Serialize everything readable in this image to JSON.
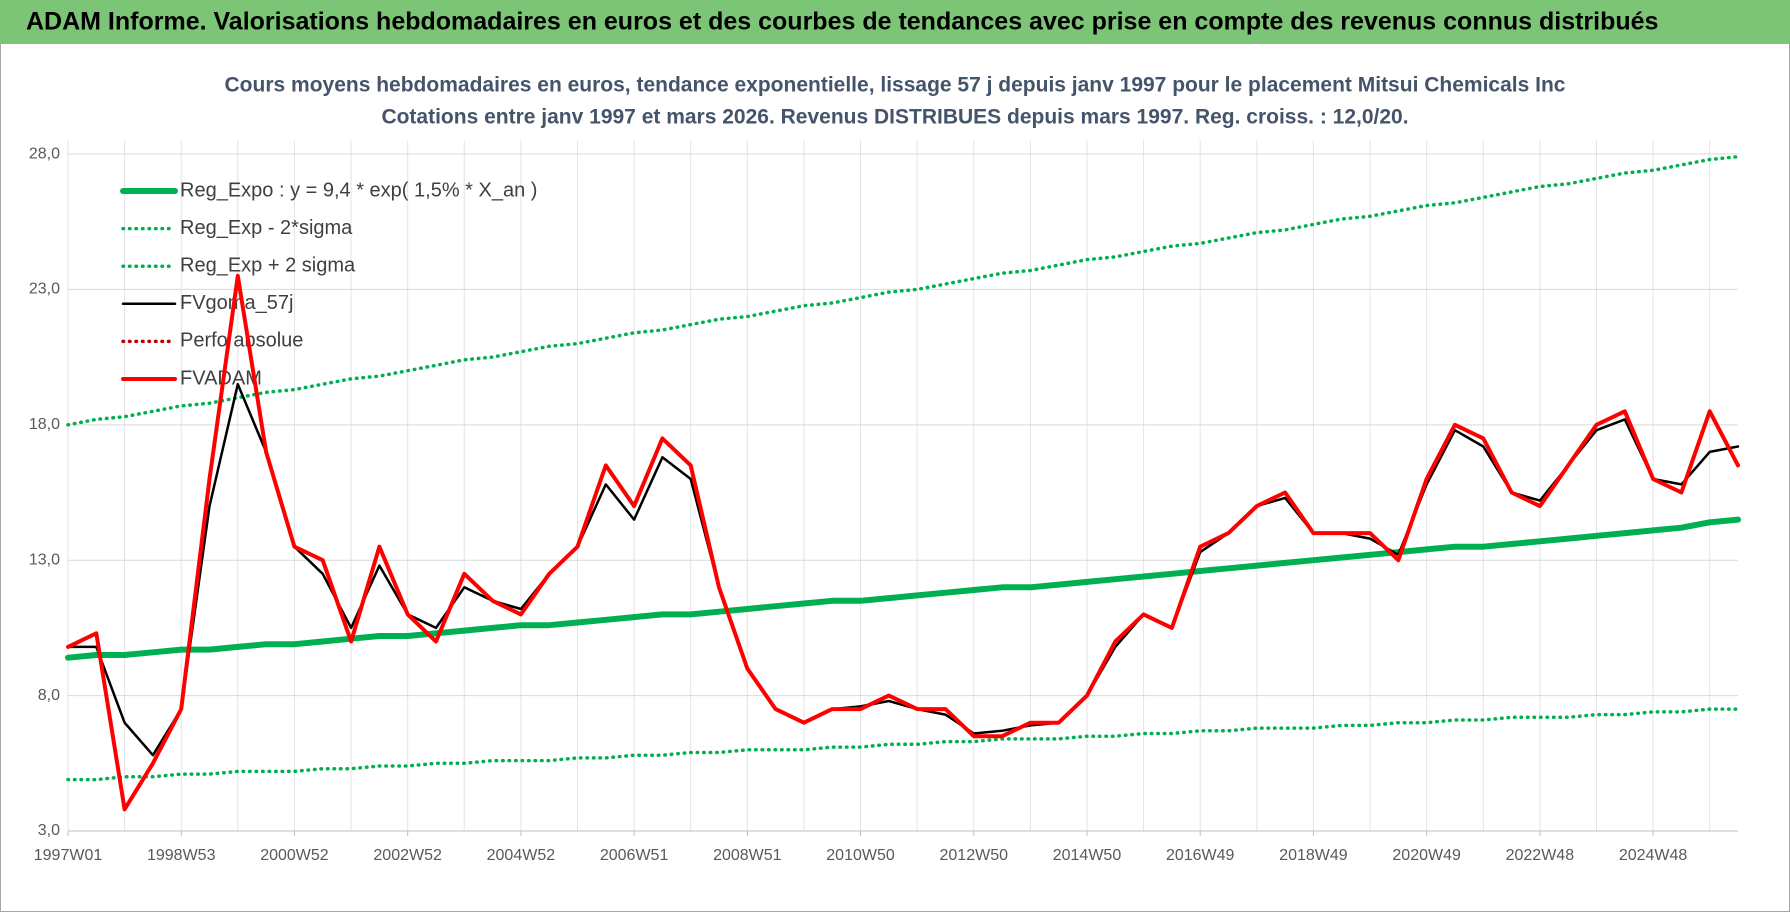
{
  "header": "ADAM Informe. Valorisations hebdomadaires en euros et des courbes de tendances avec prise en compte des revenus connus distribués",
  "chart_data": {
    "type": "line",
    "title": "Cours moyens hebdomadaires en euros, tendance exponentielle, lissage 57 j depuis janv 1997 pour le placement Mitsui Chemicals Inc",
    "subtitle": "Cotations entre janv 1997 et mars 2026. Revenus DISTRIBUES depuis mars 1997. Reg. croiss. : 12,0/20.",
    "categories": [
      "1997W01",
      null,
      null,
      null,
      "1998W53",
      null,
      null,
      null,
      "2000W52",
      null,
      null,
      null,
      "2002W52",
      null,
      null,
      null,
      "2004W52",
      null,
      null,
      null,
      "2006W51",
      null,
      null,
      null,
      "2008W51",
      null,
      null,
      null,
      "2010W50",
      null,
      null,
      null,
      "2012W50",
      null,
      null,
      null,
      "2014W50",
      null,
      null,
      null,
      "2016W49",
      null,
      null,
      null,
      "2018W49",
      null,
      null,
      null,
      "2020W49",
      null,
      null,
      null,
      "2022W48",
      null,
      null,
      null,
      "2024W48",
      null,
      null,
      null
    ],
    "ylim": [
      3,
      28.5
    ],
    "yticks": [
      {
        "value": 3,
        "label": "3,0"
      },
      {
        "value": 8,
        "label": "8,0"
      },
      {
        "value": 13,
        "label": "13,0"
      },
      {
        "value": 18,
        "label": "18,0"
      },
      {
        "value": 23,
        "label": "23,0"
      },
      {
        "value": 28,
        "label": "28,0"
      }
    ],
    "grid": true,
    "legend": "top-left",
    "series": [
      {
        "name": "Reg_Expo : y = 9,4 * exp( 1,5% *  X_an )",
        "color": "#00b050",
        "line_style": "solid",
        "values": [
          9.4,
          9.5,
          9.5,
          9.6,
          9.7,
          9.7,
          9.8,
          9.9,
          9.9,
          10.0,
          10.1,
          10.2,
          10.2,
          10.3,
          10.4,
          10.5,
          10.6,
          10.6,
          10.7,
          10.8,
          10.9,
          11.0,
          11.0,
          11.1,
          11.2,
          11.3,
          11.4,
          11.5,
          11.5,
          11.6,
          11.7,
          11.8,
          11.9,
          12.0,
          12.0,
          12.1,
          12.2,
          12.3,
          12.4,
          12.5,
          12.6,
          12.7,
          12.8,
          12.9,
          13.0,
          13.1,
          13.2,
          13.3,
          13.4,
          13.5,
          13.5,
          13.6,
          13.7,
          13.8,
          13.9,
          14.0,
          14.1,
          14.2,
          14.4,
          14.5
        ]
      },
      {
        "name": "Reg_Exp - 2*sigma",
        "color": "#00b050",
        "line_style": "dotted",
        "values": [
          4.9,
          4.9,
          5.0,
          5.0,
          5.1,
          5.1,
          5.2,
          5.2,
          5.2,
          5.3,
          5.3,
          5.4,
          5.4,
          5.5,
          5.5,
          5.6,
          5.6,
          5.6,
          5.7,
          5.7,
          5.8,
          5.8,
          5.9,
          5.9,
          6.0,
          6.0,
          6.0,
          6.1,
          6.1,
          6.2,
          6.2,
          6.3,
          6.3,
          6.4,
          6.4,
          6.4,
          6.5,
          6.5,
          6.6,
          6.6,
          6.7,
          6.7,
          6.8,
          6.8,
          6.8,
          6.9,
          6.9,
          7.0,
          7.0,
          7.1,
          7.1,
          7.2,
          7.2,
          7.2,
          7.3,
          7.3,
          7.4,
          7.4,
          7.5,
          7.5
        ]
      },
      {
        "name": "Reg_Exp + 2 sigma",
        "color": "#00b050",
        "line_style": "dotted",
        "values": [
          18.0,
          18.2,
          18.3,
          18.5,
          18.7,
          18.8,
          19.0,
          19.2,
          19.3,
          19.5,
          19.7,
          19.8,
          20.0,
          20.2,
          20.4,
          20.5,
          20.7,
          20.9,
          21.0,
          21.2,
          21.4,
          21.5,
          21.7,
          21.9,
          22.0,
          22.2,
          22.4,
          22.5,
          22.7,
          22.9,
          23.0,
          23.2,
          23.4,
          23.6,
          23.7,
          23.9,
          24.1,
          24.2,
          24.4,
          24.6,
          24.7,
          24.9,
          25.1,
          25.2,
          25.4,
          25.6,
          25.7,
          25.9,
          26.1,
          26.2,
          26.4,
          26.6,
          26.8,
          26.9,
          27.1,
          27.3,
          27.4,
          27.6,
          27.8,
          27.9
        ]
      },
      {
        "name": "FVgoma_57j",
        "color": "#000000",
        "line_style": "solid",
        "values": [
          9.8,
          9.8,
          7.0,
          5.8,
          7.5,
          15.0,
          19.5,
          17.0,
          13.5,
          12.5,
          10.5,
          12.8,
          11.0,
          10.5,
          12.0,
          11.5,
          11.2,
          12.5,
          13.5,
          15.8,
          14.5,
          16.8,
          16.0,
          12.0,
          9.0,
          7.5,
          7.0,
          7.5,
          7.6,
          7.8,
          7.5,
          7.3,
          6.6,
          6.7,
          6.9,
          7.0,
          8.0,
          9.8,
          11.0,
          10.5,
          13.3,
          14.0,
          15.0,
          15.3,
          14.0,
          14.0,
          13.8,
          13.2,
          15.8,
          17.8,
          17.2,
          15.5,
          15.2,
          16.5,
          17.8,
          18.2,
          16.0,
          15.8,
          17.0,
          17.2
        ]
      },
      {
        "name": "Perfo absolue",
        "color": "#c00000",
        "line_style": "dotted"
      },
      {
        "name": "FVADAM",
        "color": "#ff0000",
        "line_style": "solid",
        "values": [
          9.8,
          10.3,
          3.8,
          5.5,
          7.5,
          16.0,
          23.5,
          17.0,
          13.5,
          13.0,
          10.0,
          13.5,
          11.0,
          10.0,
          12.5,
          11.5,
          11.0,
          12.5,
          13.5,
          16.5,
          15.0,
          17.5,
          16.5,
          12.0,
          9.0,
          7.5,
          7.0,
          7.5,
          7.5,
          8.0,
          7.5,
          7.5,
          6.5,
          6.5,
          7.0,
          7.0,
          8.0,
          10.0,
          11.0,
          10.5,
          13.5,
          14.0,
          15.0,
          15.5,
          14.0,
          14.0,
          14.0,
          13.0,
          16.0,
          18.0,
          17.5,
          15.5,
          15.0,
          16.5,
          18.0,
          18.5,
          16.0,
          15.5,
          18.5,
          16.5
        ]
      }
    ]
  }
}
